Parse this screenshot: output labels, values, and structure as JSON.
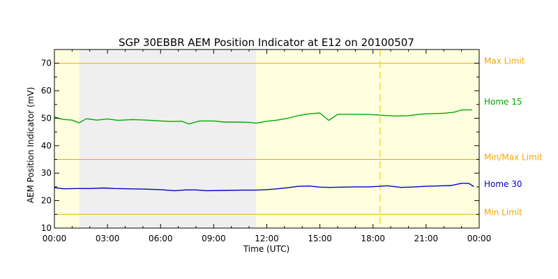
{
  "chart_data": {
    "type": "line",
    "title": "SGP 30EBBR AEM Position Indicator at E12 on 20100507",
    "xlabel": "Time (UTC)",
    "ylabel": "AEM Position Indicator (mV)",
    "xlim": [
      0,
      24
    ],
    "ylim": [
      10,
      75
    ],
    "x_ticks": [
      {
        "value": 0,
        "label": "00:00"
      },
      {
        "value": 3,
        "label": "03:00"
      },
      {
        "value": 6,
        "label": "06:00"
      },
      {
        "value": 9,
        "label": "09:00"
      },
      {
        "value": 12,
        "label": "12:00"
      },
      {
        "value": 15,
        "label": "15:00"
      },
      {
        "value": 18,
        "label": "18:00"
      },
      {
        "value": 21,
        "label": "21:00"
      },
      {
        "value": 24,
        "label": "00:00"
      }
    ],
    "y_ticks": [
      {
        "value": 10,
        "label": "10"
      },
      {
        "value": 20,
        "label": "20"
      },
      {
        "value": 30,
        "label": "30"
      },
      {
        "value": 40,
        "label": "40"
      },
      {
        "value": 50,
        "label": "50"
      },
      {
        "value": 60,
        "label": "60"
      },
      {
        "value": 70,
        "label": "70"
      }
    ],
    "background_bands": [
      {
        "from": 0,
        "to": 1.4,
        "color": "#ffffe0"
      },
      {
        "from": 1.4,
        "to": 11.4,
        "color": "#efefef"
      },
      {
        "from": 11.4,
        "to": 24,
        "color": "#ffffe0"
      }
    ],
    "reference_lines": [
      {
        "label": "Max Limit",
        "value": 70,
        "color": "#f0a800"
      },
      {
        "label": "Min/Max Limit",
        "value": 35,
        "color": "#f0a800"
      },
      {
        "label": "Min Limit",
        "value": 15,
        "color": "#f0a800"
      }
    ],
    "vertical_marker": {
      "x": 18.4,
      "color": "#f0d000",
      "style": "dashed"
    },
    "series": [
      {
        "name": "Home 15",
        "color": "#00aa00",
        "x": [
          0,
          0.3,
          0.6,
          1.0,
          1.4,
          1.8,
          2.4,
          3.0,
          3.6,
          4.4,
          5.2,
          6.0,
          6.6,
          7.2,
          7.6,
          8.2,
          9.0,
          9.6,
          10.4,
          11.0,
          11.4,
          12.0,
          12.6,
          13.2,
          13.8,
          14.4,
          15.0,
          15.5,
          16.0,
          16.8,
          17.6,
          18.4,
          19.2,
          20.0,
          20.6,
          21.0,
          22.0,
          22.6,
          23.0,
          23.6
        ],
        "values": [
          50.5,
          49.8,
          49.5,
          49.3,
          48.3,
          49.8,
          49.3,
          49.7,
          49.2,
          49.5,
          49.3,
          49.0,
          48.8,
          48.9,
          47.9,
          49.0,
          49.0,
          48.6,
          48.6,
          48.5,
          48.2,
          48.9,
          49.3,
          50.0,
          51.0,
          51.6,
          51.9,
          49.2,
          51.4,
          51.4,
          51.4,
          51.1,
          50.8,
          50.9,
          51.4,
          51.6,
          51.8,
          52.2,
          53.0,
          53.0
        ]
      },
      {
        "name": "Home 30",
        "color": "#0000d0",
        "x": [
          0,
          0.5,
          1.2,
          2.0,
          2.8,
          3.4,
          4.2,
          5.0,
          6.0,
          6.8,
          7.4,
          8.0,
          8.6,
          9.6,
          10.6,
          11.4,
          12.0,
          12.6,
          13.2,
          13.8,
          14.4,
          15.0,
          15.6,
          16.2,
          17.0,
          17.8,
          18.4,
          18.8,
          19.6,
          20.4,
          21.0,
          22.0,
          22.4,
          23.0,
          23.4,
          23.7
        ],
        "values": [
          24.7,
          24.3,
          24.4,
          24.4,
          24.6,
          24.4,
          24.3,
          24.2,
          24.0,
          23.6,
          23.9,
          23.9,
          23.6,
          23.7,
          23.8,
          23.8,
          24.0,
          24.3,
          24.7,
          25.2,
          25.3,
          24.9,
          24.8,
          24.9,
          25.0,
          25.0,
          25.2,
          25.4,
          24.8,
          25.0,
          25.2,
          25.4,
          25.5,
          26.3,
          26.3,
          25.1
        ]
      }
    ]
  }
}
